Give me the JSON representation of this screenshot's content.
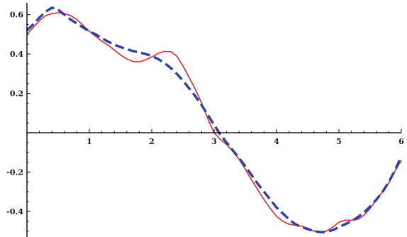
{
  "chart_data": {
    "type": "line",
    "title": "",
    "xlabel": "",
    "ylabel": "",
    "xlim": [
      0,
      6
    ],
    "ylim": [
      -0.53,
      0.66
    ],
    "grid": false,
    "legend": "none",
    "x_ticks": [
      {
        "value": 1,
        "label": "1"
      },
      {
        "value": 2,
        "label": "2"
      },
      {
        "value": 3,
        "label": "3"
      },
      {
        "value": 4,
        "label": "4"
      },
      {
        "value": 5,
        "label": "5"
      },
      {
        "value": 6,
        "label": "6"
      }
    ],
    "y_ticks": [
      {
        "value": 0.6,
        "label": "0.6"
      },
      {
        "value": 0.4,
        "label": "0.4"
      },
      {
        "value": 0.2,
        "label": "0.2"
      },
      {
        "value": -0.2,
        "label": "-0.2"
      },
      {
        "value": -0.4,
        "label": "-0.4"
      }
    ],
    "series": [
      {
        "style": "solid",
        "color": "#e8242a",
        "x": [
          0,
          0.1,
          0.2,
          0.3,
          0.4,
          0.5,
          0.6,
          0.7,
          0.8,
          0.9,
          1.0,
          1.1,
          1.2,
          1.3,
          1.4,
          1.5,
          1.6,
          1.7,
          1.8,
          1.9,
          2.0,
          2.1,
          2.2,
          2.3,
          2.4,
          2.5,
          2.6,
          2.7,
          2.8,
          2.9,
          3.0,
          3.1,
          3.2,
          3.3,
          3.4,
          3.5,
          3.6,
          3.7,
          3.8,
          3.9,
          4.0,
          4.1,
          4.2,
          4.3,
          4.4,
          4.5,
          4.6,
          4.7,
          4.8,
          4.9,
          5.0,
          5.1,
          5.2,
          5.3,
          5.4,
          5.5,
          5.6,
          5.7,
          5.8,
          5.9,
          6.0
        ],
        "y": [
          0.5,
          0.535,
          0.57,
          0.595,
          0.605,
          0.61,
          0.605,
          0.595,
          0.575,
          0.545,
          0.515,
          0.49,
          0.465,
          0.445,
          0.42,
          0.395,
          0.375,
          0.362,
          0.36,
          0.37,
          0.385,
          0.403,
          0.413,
          0.412,
          0.39,
          0.34,
          0.28,
          0.22,
          0.15,
          0.07,
          0.0,
          -0.035,
          -0.06,
          -0.095,
          -0.135,
          -0.185,
          -0.24,
          -0.29,
          -0.34,
          -0.385,
          -0.425,
          -0.45,
          -0.465,
          -0.47,
          -0.475,
          -0.485,
          -0.5,
          -0.505,
          -0.5,
          -0.48,
          -0.455,
          -0.445,
          -0.445,
          -0.44,
          -0.42,
          -0.385,
          -0.34,
          -0.3,
          -0.255,
          -0.195,
          -0.14
        ]
      },
      {
        "style": "dashed",
        "color": "#2c3ea8",
        "x": [
          0,
          0.1,
          0.2,
          0.3,
          0.4,
          0.5,
          0.6,
          0.7,
          0.8,
          0.9,
          1.0,
          1.1,
          1.2,
          1.3,
          1.4,
          1.5,
          1.6,
          1.7,
          1.8,
          1.9,
          2.0,
          2.1,
          2.2,
          2.3,
          2.4,
          2.5,
          2.6,
          2.7,
          2.8,
          2.9,
          3.0,
          3.1,
          3.2,
          3.3,
          3.4,
          3.5,
          3.6,
          3.7,
          3.8,
          3.9,
          4.0,
          4.1,
          4.2,
          4.3,
          4.4,
          4.5,
          4.6,
          4.7,
          4.8,
          4.9,
          5.0,
          5.1,
          5.2,
          5.3,
          5.4,
          5.5,
          5.6,
          5.7,
          5.8,
          5.9,
          6.0
        ],
        "y": [
          0.52,
          0.55,
          0.585,
          0.615,
          0.635,
          0.625,
          0.6,
          0.575,
          0.555,
          0.535,
          0.515,
          0.5,
          0.48,
          0.463,
          0.447,
          0.435,
          0.425,
          0.415,
          0.408,
          0.4,
          0.39,
          0.375,
          0.355,
          0.33,
          0.3,
          0.265,
          0.225,
          0.185,
          0.14,
          0.09,
          0.04,
          -0.01,
          -0.05,
          -0.09,
          -0.13,
          -0.17,
          -0.215,
          -0.26,
          -0.3,
          -0.34,
          -0.38,
          -0.41,
          -0.44,
          -0.465,
          -0.48,
          -0.49,
          -0.5,
          -0.505,
          -0.505,
          -0.495,
          -0.48,
          -0.465,
          -0.45,
          -0.43,
          -0.405,
          -0.375,
          -0.34,
          -0.3,
          -0.25,
          -0.19,
          -0.12
        ]
      }
    ]
  }
}
